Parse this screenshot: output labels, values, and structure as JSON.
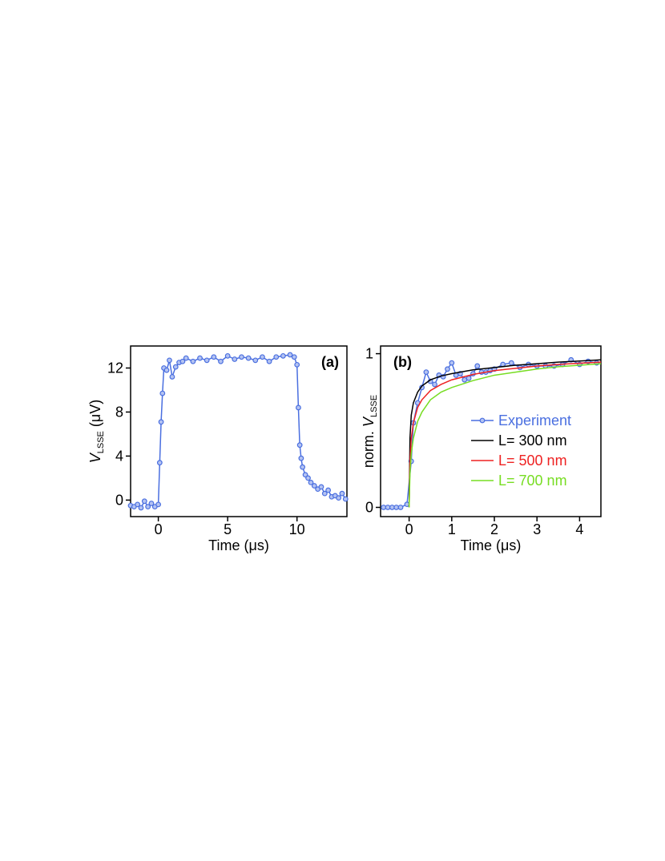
{
  "chart_data": [
    {
      "type": "line",
      "panel_label": "(a)",
      "xlabel": "Time (μs)",
      "ylabel_var": "V",
      "ylabel_sub": "LSSE",
      "ylabel_unit": "(μV)",
      "xlim": [
        -2,
        13.6
      ],
      "ylim": [
        -1.5,
        14
      ],
      "xticks": [
        0,
        5,
        10
      ],
      "yticks": [
        0,
        4,
        8,
        12
      ],
      "series": [
        {
          "color": "#4a6fe0",
          "marker": "circle",
          "x": [
            -2,
            -1.75,
            -1.5,
            -1.25,
            -1,
            -0.75,
            -0.5,
            -0.25,
            0,
            0.1,
            0.2,
            0.3,
            0.4,
            0.6,
            0.8,
            1,
            1.25,
            1.5,
            1.75,
            2,
            2.5,
            3,
            3.5,
            4,
            4.5,
            5,
            5.5,
            6,
            6.5,
            7,
            7.5,
            8,
            8.5,
            9,
            9.5,
            9.8,
            10,
            10.1,
            10.2,
            10.3,
            10.4,
            10.6,
            10.8,
            11,
            11.25,
            11.5,
            11.75,
            12,
            12.25,
            12.5,
            12.75,
            13,
            13.25,
            13.5
          ],
          "values": [
            -0.5,
            -0.6,
            -0.4,
            -0.7,
            -0.1,
            -0.6,
            -0.3,
            -0.6,
            -0.4,
            3.4,
            7.1,
            9.7,
            12.0,
            11.8,
            12.7,
            11.2,
            12.1,
            12.5,
            12.6,
            12.9,
            12.6,
            12.9,
            12.7,
            13.0,
            12.6,
            13.1,
            12.8,
            13.0,
            12.9,
            12.7,
            13.0,
            12.6,
            13.0,
            13.1,
            13.2,
            13.0,
            12.3,
            8.4,
            5.0,
            3.8,
            3.0,
            2.3,
            2.0,
            1.6,
            1.3,
            1.0,
            1.2,
            0.6,
            0.9,
            0.3,
            0.4,
            0.2,
            0.6,
            0.1
          ]
        }
      ]
    },
    {
      "type": "line",
      "panel_label": "(b)",
      "xlabel": "Time (μs)",
      "ylabel": "norm.",
      "ylabel_var": "V",
      "ylabel_sub": "LSSE",
      "xlim": [
        -0.67,
        4.5
      ],
      "ylim": [
        -0.06,
        1.05
      ],
      "xticks": [
        0,
        1,
        2,
        3,
        4
      ],
      "yticks": [
        0,
        1
      ],
      "legend": "right",
      "series": [
        {
          "name": "Experiment",
          "color": "#4a6fe0",
          "marker": "circle",
          "x": [
            -0.6,
            -0.5,
            -0.4,
            -0.3,
            -0.2,
            -0.05,
            0.05,
            0.1,
            0.2,
            0.3,
            0.4,
            0.5,
            0.6,
            0.7,
            0.8,
            0.9,
            1.0,
            1.1,
            1.2,
            1.3,
            1.4,
            1.5,
            1.6,
            1.7,
            1.8,
            1.9,
            2.0,
            2.2,
            2.4,
            2.6,
            2.8,
            3.0,
            3.2,
            3.4,
            3.6,
            3.8,
            4.0,
            4.2,
            4.4
          ],
          "values": [
            0,
            0,
            0,
            0,
            0,
            0.02,
            0.3,
            0.55,
            0.68,
            0.78,
            0.88,
            0.82,
            0.8,
            0.86,
            0.85,
            0.9,
            0.94,
            0.86,
            0.87,
            0.83,
            0.84,
            0.87,
            0.92,
            0.88,
            0.88,
            0.89,
            0.9,
            0.93,
            0.94,
            0.91,
            0.93,
            0.92,
            0.92,
            0.92,
            0.93,
            0.96,
            0.93,
            0.95,
            0.94
          ]
        },
        {
          "name": "L= 300 nm",
          "color": "#000000",
          "x": [
            0,
            0.02,
            0.05,
            0.1,
            0.2,
            0.3,
            0.5,
            0.75,
            1,
            1.5,
            2,
            2.5,
            3,
            3.5,
            4,
            4.5
          ],
          "values": [
            0,
            0.45,
            0.6,
            0.68,
            0.75,
            0.79,
            0.83,
            0.855,
            0.87,
            0.895,
            0.91,
            0.925,
            0.935,
            0.945,
            0.952,
            0.96
          ]
        },
        {
          "name": "L= 500 nm",
          "color": "#ee2222",
          "x": [
            0,
            0.02,
            0.05,
            0.1,
            0.2,
            0.3,
            0.5,
            0.75,
            1,
            1.5,
            2,
            2.5,
            3,
            3.5,
            4,
            4.5
          ],
          "values": [
            0,
            0.3,
            0.45,
            0.55,
            0.65,
            0.7,
            0.76,
            0.8,
            0.83,
            0.865,
            0.89,
            0.905,
            0.92,
            0.93,
            0.938,
            0.945
          ]
        },
        {
          "name": "L= 700 nm",
          "color": "#77dd22",
          "x": [
            0,
            0.02,
            0.05,
            0.1,
            0.2,
            0.3,
            0.5,
            0.75,
            1,
            1.5,
            2,
            2.5,
            3,
            3.5,
            4,
            4.5
          ],
          "values": [
            0,
            0.22,
            0.35,
            0.45,
            0.56,
            0.62,
            0.7,
            0.75,
            0.78,
            0.825,
            0.86,
            0.88,
            0.9,
            0.915,
            0.925,
            0.935
          ]
        }
      ]
    }
  ]
}
